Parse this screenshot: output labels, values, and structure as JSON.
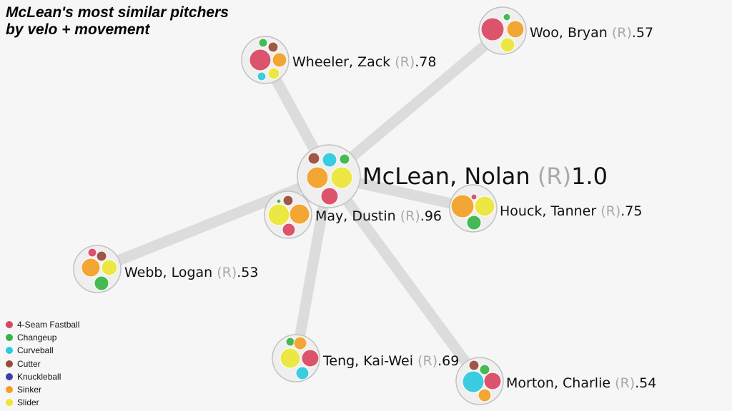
{
  "title": {
    "line1": "McLean's most similar pitchers",
    "line2": "by velo + movement"
  },
  "pitch_types": [
    {
      "key": "ff",
      "label": "4-Seam Fastball",
      "color": "#d94660"
    },
    {
      "key": "ch",
      "label": "Changeup",
      "color": "#35b548"
    },
    {
      "key": "cu",
      "label": "Curveball",
      "color": "#2dc9e0"
    },
    {
      "key": "fc",
      "label": "Cutter",
      "color": "#9a4a3a"
    },
    {
      "key": "kn",
      "label": "Knuckleball",
      "color": "#3a3fb0"
    },
    {
      "key": "si",
      "label": "Sinker",
      "color": "#f2a024"
    },
    {
      "key": "sl",
      "label": "Slider",
      "color": "#ece634"
    }
  ],
  "center": {
    "name": "McLean, Nolan",
    "hand": "(R)",
    "score": "1.0"
  },
  "pitchers": [
    {
      "name": "Wheeler, Zack",
      "hand": "(R)",
      "score": ".78"
    },
    {
      "name": "Woo, Bryan",
      "hand": "(R)",
      "score": ".57"
    },
    {
      "name": "May, Dustin",
      "hand": "(R)",
      "score": ".96"
    },
    {
      "name": "Houck, Tanner",
      "hand": "(R)",
      "score": ".75"
    },
    {
      "name": "Webb, Logan",
      "hand": "(R)",
      "score": ".53"
    },
    {
      "name": "Teng, Kai-Wei",
      "hand": "(R)",
      "score": ".69"
    },
    {
      "name": "Morton, Charlie",
      "hand": "(R)",
      "score": ".54"
    }
  ]
}
